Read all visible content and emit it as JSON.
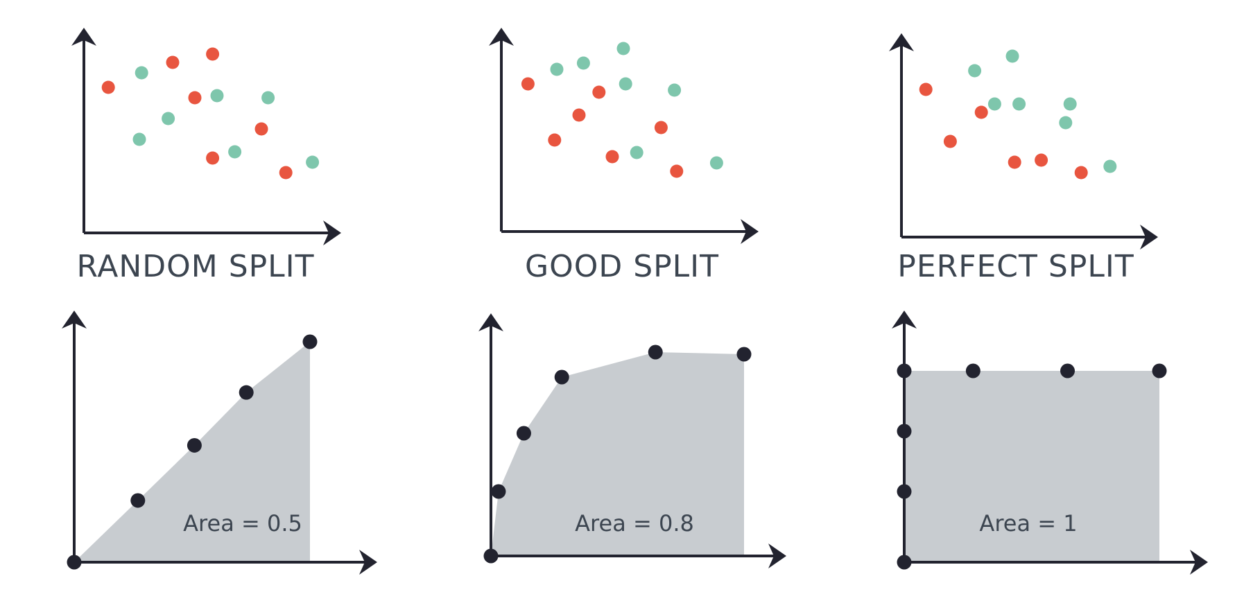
{
  "colors": {
    "class_a": "#e8553f",
    "class_b": "#7ec6ac",
    "axis": "#22232f",
    "area_fill": "#c8ccd0",
    "label": "#3c4550"
  },
  "panels": [
    {
      "label": "RANDOM SPLIT",
      "area_label": "Area = 0.5",
      "chart_data": {
        "type": "scatter",
        "series": [
          {
            "class": "class_a",
            "points": [
              [
                0.11,
                0.7
              ],
              [
                0.4,
                0.82
              ],
              [
                0.58,
                0.86
              ],
              [
                0.5,
                0.65
              ],
              [
                0.8,
                0.5
              ],
              [
                0.58,
                0.36
              ],
              [
                0.91,
                0.29
              ]
            ]
          },
          {
            "class": "class_b",
            "points": [
              [
                0.26,
                0.77
              ],
              [
                0.38,
                0.55
              ],
              [
                0.25,
                0.45
              ],
              [
                0.6,
                0.66
              ],
              [
                0.83,
                0.65
              ],
              [
                0.68,
                0.39
              ],
              [
                1.03,
                0.34
              ]
            ]
          }
        ]
      },
      "roc": {
        "type": "area",
        "points": [
          [
            0.0,
            0.0
          ],
          [
            0.27,
            0.28
          ],
          [
            0.51,
            0.53
          ],
          [
            0.73,
            0.77
          ],
          [
            1.0,
            1.0
          ]
        ],
        "area_value": 0.5
      }
    },
    {
      "label": "GOOD SPLIT",
      "area_label": "Area = 0.8",
      "chart_data": {
        "type": "scatter",
        "series": [
          {
            "class": "class_a",
            "points": [
              [
                0.12,
                0.71
              ],
              [
                0.44,
                0.67
              ],
              [
                0.35,
                0.56
              ],
              [
                0.24,
                0.44
              ],
              [
                0.72,
                0.5
              ],
              [
                0.5,
                0.36
              ],
              [
                0.79,
                0.29
              ]
            ]
          },
          {
            "class": "class_b",
            "points": [
              [
                0.25,
                0.78
              ],
              [
                0.37,
                0.81
              ],
              [
                0.55,
                0.88
              ],
              [
                0.56,
                0.71
              ],
              [
                0.78,
                0.68
              ],
              [
                0.61,
                0.38
              ],
              [
                0.97,
                0.33
              ]
            ]
          }
        ]
      },
      "roc": {
        "type": "area",
        "points": [
          [
            0.0,
            0.0
          ],
          [
            0.03,
            0.31
          ],
          [
            0.13,
            0.59
          ],
          [
            0.28,
            0.86
          ],
          [
            0.65,
            0.98
          ],
          [
            1.0,
            0.97
          ]
        ],
        "area_value": 0.8
      }
    },
    {
      "label": "PERFECT SPLIT",
      "area_label": "Area = 1",
      "chart_data": {
        "type": "scatter",
        "series": [
          {
            "class": "class_a",
            "points": [
              [
                0.11,
                0.71
              ],
              [
                0.22,
                0.46
              ],
              [
                0.36,
                0.6
              ],
              [
                0.51,
                0.36
              ],
              [
                0.63,
                0.37
              ],
              [
                0.81,
                0.31
              ]
            ]
          },
          {
            "class": "class_b",
            "points": [
              [
                0.33,
                0.8
              ],
              [
                0.5,
                0.87
              ],
              [
                0.42,
                0.64
              ],
              [
                0.53,
                0.64
              ],
              [
                0.76,
                0.64
              ],
              [
                0.74,
                0.55
              ],
              [
                0.94,
                0.34
              ]
            ]
          }
        ]
      },
      "roc": {
        "type": "area",
        "points": [
          [
            0.0,
            0.0
          ],
          [
            0.0,
            0.34
          ],
          [
            0.0,
            0.63
          ],
          [
            0.0,
            0.92
          ],
          [
            0.27,
            0.92
          ],
          [
            0.64,
            0.92
          ],
          [
            1.0,
            0.92
          ]
        ],
        "area_value": 1
      }
    }
  ]
}
